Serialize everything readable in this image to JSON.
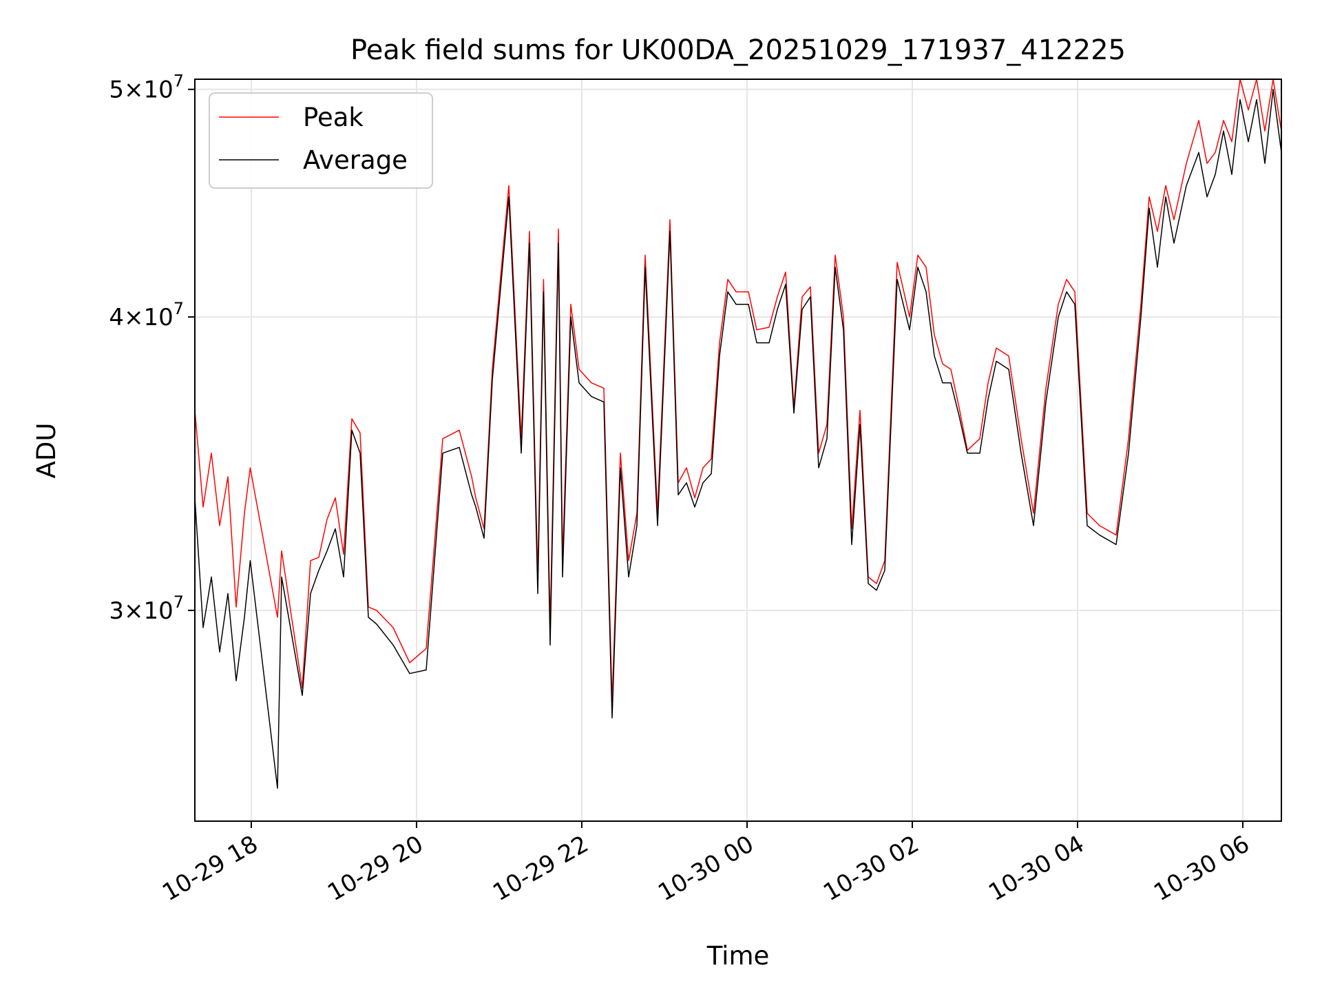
{
  "chart_data": {
    "type": "line",
    "title": "Peak field sums for UK00DA_20251029_171937_412225",
    "xlabel": "Time",
    "ylabel": "ADU",
    "x_unit": "hours since 2025-10-29 17:19",
    "xlim": [
      0,
      13.15
    ],
    "ylim": [
      24.4,
      50.5
    ],
    "y_scale": "log",
    "grid": true,
    "legend_position": "upper-left",
    "x_ticks": [
      {
        "label": "10-29 18",
        "value": 0.683
      },
      {
        "label": "10-29 20",
        "value": 2.683
      },
      {
        "label": "10-29 22",
        "value": 4.683
      },
      {
        "label": "10-30 00",
        "value": 6.683
      },
      {
        "label": "10-30 02",
        "value": 8.683
      },
      {
        "label": "10-30 04",
        "value": 10.683
      },
      {
        "label": "10-30 06",
        "value": 12.683
      }
    ],
    "y_ticks": [
      {
        "base": "3",
        "times": "×",
        "power": "10",
        "exp": "7",
        "value": 30
      },
      {
        "base": "4",
        "times": "×",
        "power": "10",
        "exp": "7",
        "value": 40
      },
      {
        "base": "5",
        "times": "×",
        "power": "10",
        "exp": "7",
        "value": 50
      }
    ],
    "y_value_unit": "1e6 ADU",
    "series": [
      {
        "name": "Peak",
        "color": "#ff0000",
        "x": [
          0.0,
          0.1,
          0.2,
          0.3,
          0.4,
          0.5,
          0.6,
          0.67,
          1.0,
          1.05,
          1.3,
          1.4,
          1.5,
          1.6,
          1.7,
          1.8,
          1.9,
          2.0,
          2.1,
          2.2,
          2.4,
          2.6,
          2.8,
          3.0,
          3.2,
          3.35,
          3.4,
          3.5,
          3.6,
          3.8,
          3.95,
          4.05,
          4.15,
          4.22,
          4.3,
          4.4,
          4.45,
          4.55,
          4.65,
          4.8,
          4.95,
          5.05,
          5.15,
          5.25,
          5.35,
          5.45,
          5.6,
          5.75,
          5.85,
          5.95,
          6.05,
          6.15,
          6.25,
          6.35,
          6.45,
          6.55,
          6.7,
          6.8,
          6.95,
          7.05,
          7.15,
          7.25,
          7.35,
          7.45,
          7.55,
          7.65,
          7.75,
          7.85,
          7.95,
          8.05,
          8.15,
          8.25,
          8.35,
          8.5,
          8.65,
          8.75,
          8.85,
          8.95,
          9.05,
          9.15,
          9.25,
          9.35,
          9.5,
          9.6,
          9.7,
          9.85,
          10.0,
          10.15,
          10.3,
          10.45,
          10.55,
          10.65,
          10.8,
          10.95,
          11.15,
          11.3,
          11.45,
          11.55,
          11.65,
          11.75,
          11.85,
          12.0,
          12.15,
          12.25,
          12.35,
          12.45,
          12.55,
          12.65,
          12.75,
          12.85,
          12.95,
          13.05,
          13.15
        ],
        "values": [
          36.5,
          33.2,
          35.0,
          32.6,
          34.2,
          30.1,
          33.0,
          34.5,
          29.8,
          31.8,
          27.8,
          31.5,
          31.6,
          32.8,
          33.5,
          31.7,
          36.2,
          35.7,
          30.1,
          30.0,
          29.5,
          28.5,
          28.9,
          35.5,
          35.8,
          34.2,
          33.5,
          32.5,
          38.0,
          45.5,
          35.5,
          43.5,
          31.0,
          41.5,
          29.5,
          43.6,
          31.5,
          40.5,
          38.0,
          37.5,
          37.3,
          27.4,
          35.0,
          31.5,
          33.0,
          42.5,
          33.0,
          44.0,
          34.0,
          34.5,
          33.5,
          34.5,
          34.8,
          39.0,
          41.5,
          41.0,
          41.0,
          39.5,
          39.6,
          40.8,
          41.8,
          36.6,
          40.8,
          41.2,
          35.0,
          36.0,
          42.5,
          40.0,
          32.5,
          36.5,
          31.0,
          30.8,
          31.5,
          42.2,
          40.0,
          42.5,
          42.0,
          39.3,
          38.2,
          38.0,
          36.6,
          35.1,
          35.5,
          37.5,
          38.8,
          38.5,
          35.5,
          33.0,
          37.3,
          40.5,
          41.5,
          41.0,
          33.0,
          32.6,
          32.3,
          35.5,
          40.5,
          45.0,
          43.5,
          45.5,
          44.0,
          46.5,
          48.5,
          46.5,
          47.0,
          48.5,
          47.5,
          50.5,
          49.0,
          50.5,
          48.0,
          50.5,
          48.0
        ]
      },
      {
        "name": "Average",
        "color": "#000000",
        "x": [
          0.0,
          0.1,
          0.2,
          0.3,
          0.4,
          0.5,
          0.6,
          0.67,
          1.0,
          1.05,
          1.3,
          1.4,
          1.5,
          1.6,
          1.7,
          1.8,
          1.9,
          2.0,
          2.1,
          2.2,
          2.4,
          2.6,
          2.8,
          3.0,
          3.2,
          3.35,
          3.4,
          3.5,
          3.6,
          3.8,
          3.95,
          4.05,
          4.15,
          4.22,
          4.3,
          4.4,
          4.45,
          4.55,
          4.65,
          4.8,
          4.95,
          5.05,
          5.15,
          5.25,
          5.35,
          5.45,
          5.6,
          5.75,
          5.85,
          5.95,
          6.05,
          6.15,
          6.25,
          6.35,
          6.45,
          6.55,
          6.7,
          6.8,
          6.95,
          7.05,
          7.15,
          7.25,
          7.35,
          7.45,
          7.55,
          7.65,
          7.75,
          7.85,
          7.95,
          8.05,
          8.15,
          8.25,
          8.35,
          8.5,
          8.65,
          8.75,
          8.85,
          8.95,
          9.05,
          9.15,
          9.25,
          9.35,
          9.5,
          9.6,
          9.7,
          9.85,
          10.0,
          10.15,
          10.3,
          10.45,
          10.55,
          10.65,
          10.8,
          10.95,
          11.15,
          11.3,
          11.45,
          11.55,
          11.65,
          11.75,
          11.85,
          12.0,
          12.15,
          12.25,
          12.35,
          12.45,
          12.55,
          12.65,
          12.75,
          12.85,
          12.95,
          13.05,
          13.15
        ],
        "values": [
          33.5,
          29.5,
          31.0,
          28.8,
          30.5,
          28.0,
          29.8,
          31.5,
          25.2,
          31.0,
          27.6,
          30.5,
          31.2,
          31.8,
          32.5,
          31.0,
          35.8,
          35.0,
          29.8,
          29.6,
          29.0,
          28.2,
          28.3,
          35.0,
          35.2,
          33.6,
          33.2,
          32.2,
          37.6,
          45.0,
          35.0,
          43.0,
          30.5,
          41.0,
          29.0,
          43.0,
          31.0,
          40.0,
          37.5,
          37.0,
          36.8,
          27.0,
          34.5,
          31.0,
          32.6,
          42.0,
          32.6,
          43.5,
          33.6,
          34.0,
          33.2,
          34.0,
          34.3,
          38.5,
          41.0,
          40.5,
          40.5,
          39.0,
          39.0,
          40.3,
          41.3,
          36.4,
          40.3,
          40.8,
          34.5,
          35.5,
          42.0,
          39.5,
          32.0,
          36.0,
          30.8,
          30.6,
          31.2,
          41.5,
          39.5,
          42.0,
          41.0,
          38.5,
          37.5,
          37.5,
          36.3,
          35.0,
          35.0,
          36.9,
          38.3,
          38.0,
          35.0,
          32.6,
          36.8,
          40.0,
          41.0,
          40.5,
          32.6,
          32.3,
          32.0,
          35.0,
          40.0,
          44.5,
          42.0,
          45.0,
          43.0,
          45.5,
          47.0,
          45.0,
          46.0,
          48.0,
          46.0,
          49.5,
          47.5,
          49.5,
          46.5,
          50.0,
          47.0
        ]
      }
    ]
  }
}
